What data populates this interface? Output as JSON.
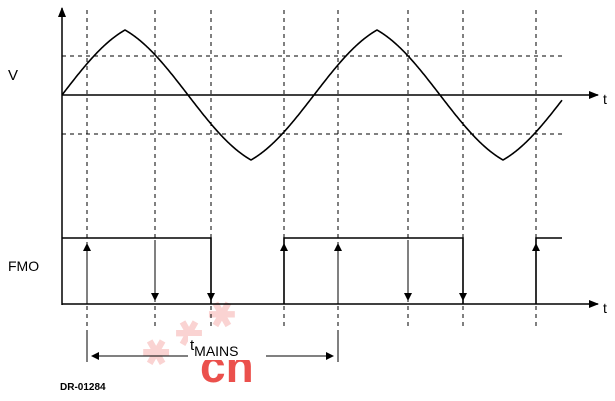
{
  "labels": {
    "voltage": "V",
    "fmo": "FMO",
    "time_top": "t",
    "time_bottom": "t",
    "mains_t": "t",
    "mains_sub": "MAINS",
    "figure_code": "DR-01284"
  },
  "watermark": {
    "text": "cn",
    "color": "#e8322d"
  },
  "colors": {
    "line": "#000000",
    "grid": "#000000",
    "watermark": "#e8322d"
  }
}
